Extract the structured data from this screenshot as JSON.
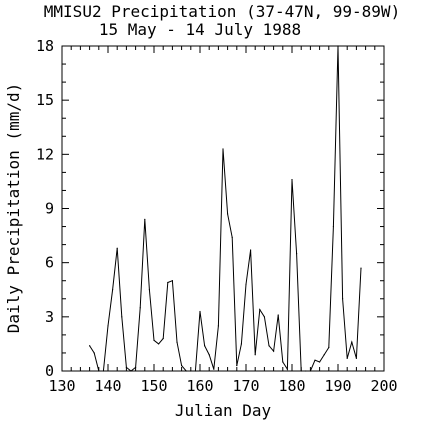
{
  "chart_data": {
    "type": "line",
    "title": "MMISU2 Precipitation (37-47N, 99-89W)",
    "subtitle": "15 May - 14 July 1988",
    "xlabel": "Julian Day",
    "ylabel": "Daily Precipitation (mm/d)",
    "xlim": [
      130,
      200
    ],
    "ylim": [
      0,
      18
    ],
    "x_ticks": [
      "130",
      "140",
      "150",
      "160",
      "170",
      "180",
      "190",
      "200"
    ],
    "y_ticks": [
      "0",
      "3",
      "6",
      "9",
      "12",
      "15",
      "18"
    ],
    "grid": false,
    "series": [
      {
        "x": [
          136,
          137,
          138,
          139,
          140,
          141,
          142,
          143,
          144,
          145,
          146,
          147,
          148,
          149,
          150,
          151,
          152,
          153,
          154,
          155,
          156,
          157,
          158,
          159,
          160,
          161,
          162,
          163,
          164,
          165,
          166,
          167,
          168,
          169,
          170,
          171,
          172,
          173,
          174,
          175,
          176,
          177,
          178,
          179,
          180,
          181,
          182,
          183,
          184,
          185,
          186,
          187,
          188,
          189,
          190,
          191,
          192,
          193,
          194,
          195
        ],
        "values": [
          1.4,
          1.0,
          0.0,
          0.0,
          2.5,
          4.5,
          6.8,
          3.0,
          0.2,
          0.0,
          0.2,
          3.5,
          8.4,
          4.5,
          1.7,
          1.5,
          1.8,
          4.9,
          5.0,
          1.6,
          0.3,
          0.0,
          0.0,
          0.0,
          3.3,
          1.4,
          0.9,
          0.1,
          2.5,
          12.3,
          8.7,
          7.4,
          0.3,
          1.5,
          4.8,
          6.7,
          0.9,
          3.4,
          3.0,
          1.4,
          1.1,
          3.1,
          0.5,
          0.1,
          10.6,
          6.5,
          0.0,
          0.0,
          0.0,
          0.6,
          0.5,
          0.9,
          1.3,
          8.0,
          18.0,
          4.0,
          0.7,
          1.6,
          0.7,
          5.7
        ]
      }
    ]
  }
}
